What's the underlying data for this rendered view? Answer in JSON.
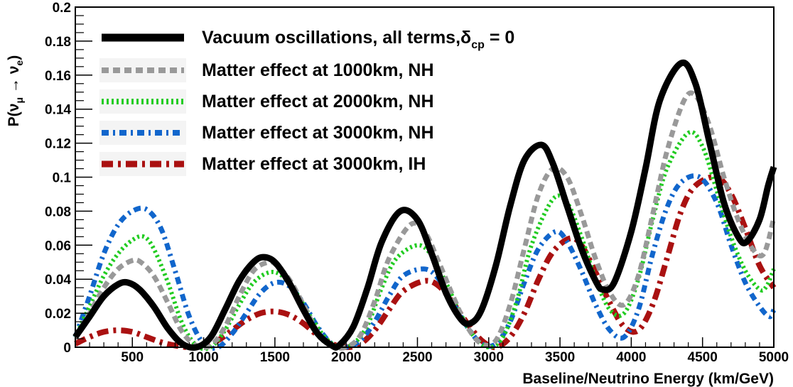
{
  "chart_data": {
    "type": "line",
    "title": "",
    "xlabel": "Baseline/Neutrino Energy (km/GeV)",
    "ylabel": {
      "prefix": "P(",
      "nu1": "ν",
      "sub1": "μ",
      "arrow": " → ",
      "nu2": "ν",
      "sub2": "e",
      "suffix": ")"
    },
    "xlim": [
      100,
      5000
    ],
    "ylim": [
      0,
      0.2
    ],
    "xticks": [
      "500",
      "1000",
      "1500",
      "2000",
      "2500",
      "3000",
      "3500",
      "4000",
      "4500",
      "5000"
    ],
    "yticks": [
      "0",
      "0.02",
      "0.04",
      "0.06",
      "0.08",
      "0.1",
      "0.12",
      "0.14",
      "0.16",
      "0.18",
      "0.2"
    ],
    "legend_position": "top-center",
    "series": [
      {
        "name": "Vacuum oscillations, all terms,",
        "name_delta": "δ",
        "name_sub": "cp",
        "name_tail": " = 0",
        "color": "#000000",
        "style": "solid",
        "x": [
          100,
          200,
          300,
          400,
          470,
          550,
          650,
          750,
          850,
          950,
          1050,
          1150,
          1250,
          1350,
          1420,
          1500,
          1600,
          1700,
          1800,
          1900,
          1950,
          2050,
          2150,
          2250,
          2380,
          2500,
          2600,
          2700,
          2800,
          2870,
          2950,
          3050,
          3150,
          3250,
          3370,
          3450,
          3550,
          3650,
          3750,
          3800,
          3880,
          4000,
          4100,
          4200,
          4350,
          4450,
          4550,
          4650,
          4750,
          4810,
          4900,
          4960,
          5000
        ],
        "y": [
          0.006,
          0.018,
          0.03,
          0.037,
          0.038,
          0.034,
          0.024,
          0.011,
          0.002,
          0.0,
          0.006,
          0.022,
          0.039,
          0.05,
          0.053,
          0.05,
          0.038,
          0.022,
          0.008,
          0.001,
          0.001,
          0.012,
          0.035,
          0.062,
          0.08,
          0.075,
          0.055,
          0.032,
          0.017,
          0.014,
          0.022,
          0.048,
          0.083,
          0.11,
          0.119,
          0.108,
          0.083,
          0.058,
          0.039,
          0.034,
          0.038,
          0.068,
          0.105,
          0.145,
          0.167,
          0.155,
          0.12,
          0.085,
          0.065,
          0.062,
          0.075,
          0.095,
          0.106
        ]
      },
      {
        "name": "Matter effect at 1000km, NH",
        "color": "#999999",
        "style": "dashed",
        "x": [
          100,
          200,
          300,
          400,
          500,
          560,
          650,
          750,
          850,
          950,
          1050,
          1150,
          1250,
          1350,
          1450,
          1500,
          1600,
          1700,
          1800,
          1900,
          2000,
          2100,
          2200,
          2300,
          2450,
          2550,
          2650,
          2750,
          2850,
          2950,
          3050,
          3150,
          3250,
          3350,
          3450,
          3550,
          3650,
          3750,
          3850,
          3950,
          4050,
          4150,
          4250,
          4370,
          4450,
          4550,
          4650,
          4750,
          4850,
          4930,
          5000
        ],
        "y": [
          0.006,
          0.02,
          0.035,
          0.046,
          0.051,
          0.05,
          0.042,
          0.026,
          0.009,
          0.001,
          0.001,
          0.012,
          0.03,
          0.045,
          0.05,
          0.049,
          0.04,
          0.025,
          0.009,
          0.001,
          0.0,
          0.007,
          0.027,
          0.052,
          0.072,
          0.068,
          0.05,
          0.03,
          0.012,
          0.002,
          0.004,
          0.025,
          0.058,
          0.09,
          0.105,
          0.1,
          0.078,
          0.052,
          0.032,
          0.025,
          0.042,
          0.078,
          0.115,
          0.145,
          0.148,
          0.13,
          0.1,
          0.075,
          0.058,
          0.055,
          0.076
        ]
      },
      {
        "name": "Matter effect at 2000km, NH",
        "color": "#22cc22",
        "style": "dotted",
        "x": [
          100,
          200,
          300,
          400,
          500,
          580,
          650,
          750,
          850,
          950,
          1050,
          1150,
          1250,
          1350,
          1460,
          1550,
          1650,
          1750,
          1850,
          1950,
          2050,
          2150,
          2250,
          2350,
          2500,
          2600,
          2700,
          2800,
          2900,
          3000,
          3100,
          3200,
          3300,
          3450,
          3550,
          3650,
          3750,
          3850,
          3950,
          4050,
          4150,
          4250,
          4400,
          4500,
          4600,
          4700,
          4800,
          4900,
          4950,
          5000
        ],
        "y": [
          0.006,
          0.024,
          0.042,
          0.055,
          0.063,
          0.065,
          0.058,
          0.038,
          0.014,
          0.001,
          0.0,
          0.01,
          0.025,
          0.038,
          0.044,
          0.042,
          0.032,
          0.018,
          0.006,
          0.0,
          0.002,
          0.013,
          0.035,
          0.052,
          0.06,
          0.054,
          0.038,
          0.02,
          0.006,
          0.0,
          0.006,
          0.028,
          0.06,
          0.087,
          0.085,
          0.065,
          0.04,
          0.022,
          0.02,
          0.04,
          0.075,
          0.105,
          0.126,
          0.118,
          0.092,
          0.065,
          0.045,
          0.034,
          0.036,
          0.046
        ]
      },
      {
        "name": "Matter effect at 3000km, NH",
        "color": "#1166cc",
        "style": "dashdot",
        "x": [
          100,
          200,
          300,
          400,
          500,
          600,
          700,
          800,
          900,
          1000,
          1100,
          1200,
          1300,
          1400,
          1500,
          1600,
          1700,
          1800,
          1900,
          2000,
          2100,
          2200,
          2300,
          2400,
          2550,
          2650,
          2750,
          2850,
          2950,
          3050,
          3150,
          3250,
          3350,
          3470,
          3550,
          3650,
          3750,
          3850,
          3950,
          4050,
          4150,
          4250,
          4350,
          4480,
          4600,
          4700,
          4800,
          4900,
          4970,
          5000
        ],
        "y": [
          0.006,
          0.03,
          0.055,
          0.072,
          0.08,
          0.081,
          0.07,
          0.045,
          0.018,
          0.002,
          0.0,
          0.008,
          0.02,
          0.032,
          0.038,
          0.036,
          0.026,
          0.012,
          0.002,
          0.0,
          0.004,
          0.015,
          0.03,
          0.042,
          0.046,
          0.04,
          0.026,
          0.012,
          0.002,
          0.002,
          0.015,
          0.038,
          0.058,
          0.068,
          0.062,
          0.045,
          0.025,
          0.01,
          0.006,
          0.022,
          0.055,
          0.082,
          0.097,
          0.1,
          0.085,
          0.06,
          0.038,
          0.024,
          0.018,
          0.022
        ]
      },
      {
        "name": "Matter effect at 3000km, IH",
        "color": "#aa1111",
        "style": "dashdot",
        "x": [
          100,
          200,
          300,
          400,
          500,
          600,
          700,
          800,
          900,
          1000,
          1100,
          1200,
          1300,
          1400,
          1500,
          1600,
          1700,
          1800,
          1900,
          2000,
          2100,
          2200,
          2300,
          2400,
          2550,
          2650,
          2750,
          2850,
          2950,
          3050,
          3150,
          3250,
          3350,
          3450,
          3570,
          3650,
          3750,
          3850,
          3950,
          4050,
          4150,
          4250,
          4350,
          4450,
          4600,
          4700,
          4800,
          4900,
          5000
        ],
        "y": [
          0.002,
          0.006,
          0.009,
          0.01,
          0.009,
          0.006,
          0.003,
          0.001,
          0.0,
          0.001,
          0.004,
          0.01,
          0.016,
          0.02,
          0.021,
          0.019,
          0.014,
          0.007,
          0.002,
          0.0,
          0.002,
          0.01,
          0.022,
          0.033,
          0.039,
          0.036,
          0.026,
          0.014,
          0.004,
          0.0,
          0.006,
          0.02,
          0.04,
          0.056,
          0.064,
          0.06,
          0.044,
          0.026,
          0.012,
          0.01,
          0.025,
          0.052,
          0.08,
          0.095,
          0.1,
          0.09,
          0.07,
          0.048,
          0.035
        ]
      }
    ]
  }
}
